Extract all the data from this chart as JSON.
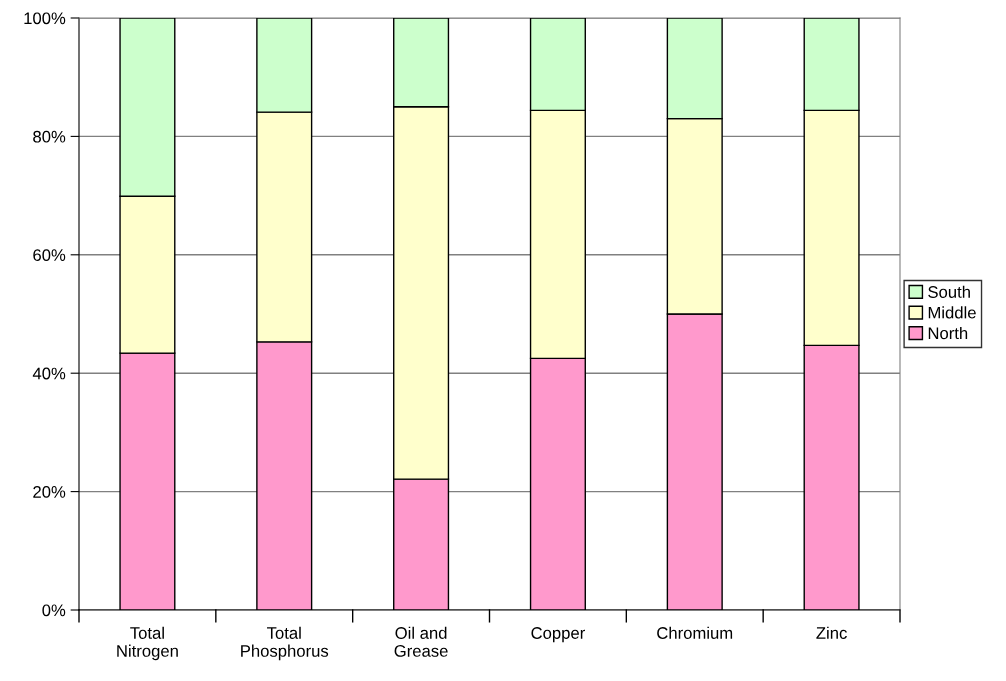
{
  "chart_data": {
    "type": "bar",
    "stacked": true,
    "categories": [
      "Total\nNitrogen",
      "Total\nPhosphorus",
      "Oil and\nGrease",
      "Copper",
      "Chromium",
      "Zinc"
    ],
    "series": [
      {
        "name": "North",
        "color": "#ff99cc",
        "values": [
          43.4,
          45.3,
          22.1,
          42.5,
          50.0,
          44.7
        ]
      },
      {
        "name": "Middle",
        "color": "#ffffcc",
        "values": [
          26.5,
          38.8,
          62.9,
          41.9,
          33.0,
          39.7
        ]
      },
      {
        "name": "South",
        "color": "#ccffcc",
        "values": [
          30.1,
          15.9,
          15.0,
          15.6,
          17.0,
          15.6
        ]
      }
    ],
    "ylim": [
      0,
      100
    ],
    "yticks": [
      {
        "value": 0,
        "label": "0%"
      },
      {
        "value": 20,
        "label": "20%"
      },
      {
        "value": 40,
        "label": "40%"
      },
      {
        "value": 60,
        "label": "60%"
      },
      {
        "value": 80,
        "label": "80%"
      },
      {
        "value": 100,
        "label": "100%"
      }
    ],
    "grid": "y",
    "legend": "right"
  }
}
